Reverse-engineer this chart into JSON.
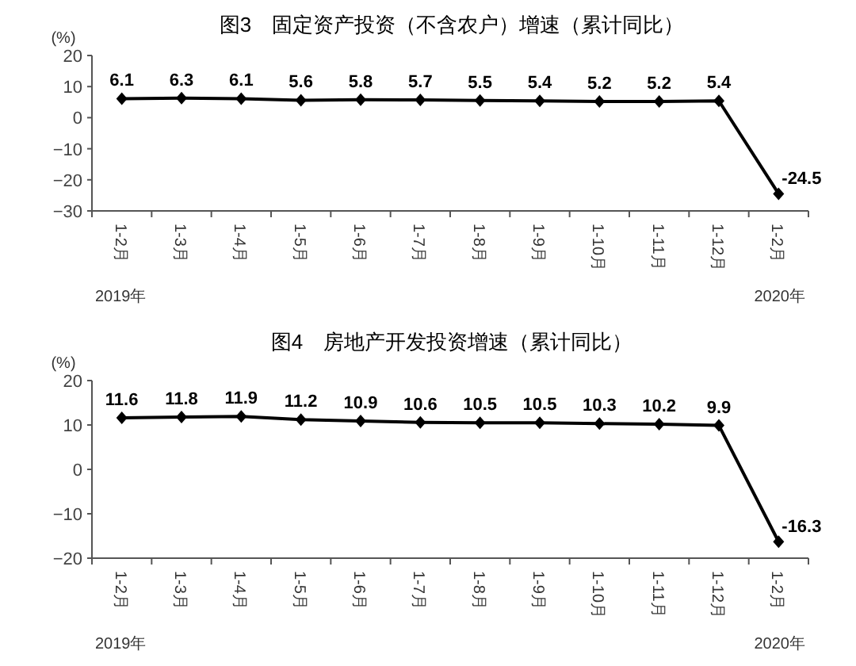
{
  "chart_data": [
    {
      "type": "line",
      "title": "图3　固定资产投资（不含农户）增速（累计同比）",
      "ylabel": "(%)",
      "categories": [
        "1-2月",
        "1-3月",
        "1-4月",
        "1-5月",
        "1-6月",
        "1-7月",
        "1-8月",
        "1-9月",
        "1-10月",
        "1-11月",
        "1-12月",
        "1-2月"
      ],
      "series": [
        {
          "color": "#000000",
          "values": [
            6.1,
            6.3,
            6.1,
            5.6,
            5.8,
            5.7,
            5.5,
            5.4,
            5.2,
            5.2,
            5.4,
            -24.5
          ]
        }
      ],
      "ylim": [
        -30,
        20
      ],
      "yticks": [
        -30,
        -20,
        -10,
        0,
        10,
        20
      ],
      "data_labels": true,
      "marker": "diamond",
      "grid": false,
      "annotations": [
        "2019年",
        "2020年"
      ]
    },
    {
      "type": "line",
      "title": "图4　房地产开发投资增速（累计同比）",
      "ylabel": "(%)",
      "categories": [
        "1-2月",
        "1-3月",
        "1-4月",
        "1-5月",
        "1-6月",
        "1-7月",
        "1-8月",
        "1-9月",
        "1-10月",
        "1-11月",
        "1-12月",
        "1-2月"
      ],
      "series": [
        {
          "color": "#000000",
          "values": [
            11.6,
            11.8,
            11.9,
            11.2,
            10.9,
            10.6,
            10.5,
            10.5,
            10.3,
            10.2,
            9.9,
            -16.3
          ]
        }
      ],
      "ylim": [
        -20,
        20
      ],
      "yticks": [
        -20,
        -10,
        0,
        10,
        20
      ],
      "data_labels": true,
      "marker": "diamond",
      "grid": false,
      "annotations": [
        "2019年",
        "2020年"
      ]
    }
  ]
}
